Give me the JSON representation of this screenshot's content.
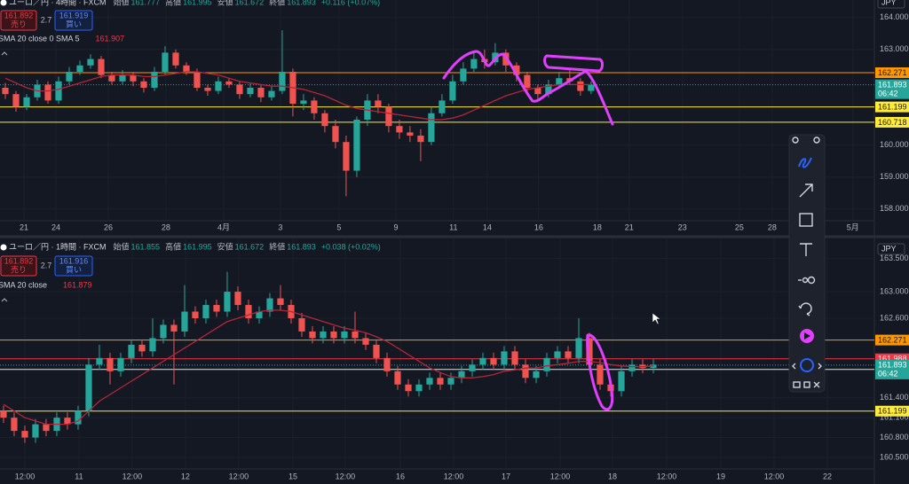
{
  "chart_data": [
    {
      "type": "candlestick",
      "title": "ユーロ／円 · 4時間 · FXCM",
      "ohlc": [
        {
          "label": "始値",
          "value": 161.777
        },
        {
          "label": "高値",
          "value": 161.995
        },
        {
          "label": "安値",
          "value": 161.672
        },
        {
          "label": "終値",
          "value": 161.893
        }
      ],
      "change": "+0.116 (+0.07%)",
      "sell": {
        "price": 161.892,
        "label": "売り"
      },
      "spread": 2.7,
      "buy": {
        "price": 161.919,
        "label": "買い"
      },
      "indicator": {
        "name": "SMA 20 close 0 SMA 5",
        "value": 161.907
      },
      "currency": "JPY",
      "up_color": "#26a69a",
      "down_color": "#ef5350",
      "sma_color": "#b3263a",
      "xlim": [
        -0.5,
        81.6
      ],
      "ylim": [
        157.66,
        164.55
      ],
      "xticks": [
        {
          "value": 1.75,
          "label": "21"
        },
        {
          "value": 4.75,
          "label": "24"
        },
        {
          "value": 9.67,
          "label": "26"
        },
        {
          "value": 15.08,
          "label": "28"
        },
        {
          "value": 20.5,
          "label": "4月"
        },
        {
          "value": 25.83,
          "label": "3"
        },
        {
          "value": 31.33,
          "label": "5"
        },
        {
          "value": 36.67,
          "label": "9"
        },
        {
          "value": 42.08,
          "label": "11"
        },
        {
          "value": 45.25,
          "label": "14"
        },
        {
          "value": 50.08,
          "label": "16"
        },
        {
          "value": 55.58,
          "label": "18"
        },
        {
          "value": 58.58,
          "label": "21"
        },
        {
          "value": 63.58,
          "label": "23"
        },
        {
          "value": 68.92,
          "label": "25"
        },
        {
          "value": 72,
          "label": "28"
        },
        {
          "value": 79.58,
          "label": "5月"
        }
      ],
      "yticks": [
        {
          "value": 164,
          "label": "164.000"
        },
        {
          "value": 163,
          "label": "163.000"
        },
        {
          "value": 160,
          "label": "160.000"
        },
        {
          "value": 159,
          "label": "159.000"
        },
        {
          "value": 158,
          "label": "158.000"
        }
      ],
      "candles": [
        [
          161.8,
          161.95,
          161.45,
          161.6
        ],
        [
          161.6,
          161.7,
          161.05,
          161.2
        ],
        [
          161.2,
          161.6,
          161.1,
          161.5
        ],
        [
          161.5,
          162.05,
          161.4,
          161.9
        ],
        [
          161.9,
          162.0,
          161.3,
          161.4
        ],
        [
          161.4,
          162.15,
          161.3,
          162.0
        ],
        [
          162.0,
          162.45,
          161.9,
          162.3
        ],
        [
          162.3,
          162.65,
          162.2,
          162.5
        ],
        [
          162.5,
          162.85,
          162.4,
          162.7
        ],
        [
          162.7,
          162.8,
          162.1,
          162.2
        ],
        [
          162.2,
          162.3,
          161.9,
          162.0
        ],
        [
          162.0,
          162.35,
          161.9,
          162.2
        ],
        [
          162.2,
          162.3,
          161.85,
          162.0
        ],
        [
          162.0,
          162.1,
          161.65,
          161.8
        ],
        [
          161.8,
          162.45,
          161.7,
          162.3
        ],
        [
          162.3,
          163.1,
          162.2,
          162.9
        ],
        [
          162.9,
          163.0,
          162.4,
          162.5
        ],
        [
          162.5,
          162.6,
          162.2,
          162.3
        ],
        [
          162.3,
          162.4,
          161.7,
          161.8
        ],
        [
          161.8,
          161.9,
          161.55,
          161.7
        ],
        [
          161.7,
          162.15,
          161.6,
          162.0
        ],
        [
          162.0,
          162.1,
          161.8,
          161.9
        ],
        [
          161.9,
          162.0,
          161.45,
          161.6
        ],
        [
          161.6,
          161.95,
          161.5,
          161.8
        ],
        [
          161.8,
          161.9,
          161.35,
          161.5
        ],
        [
          161.5,
          161.85,
          161.4,
          161.7
        ],
        [
          161.7,
          163.6,
          161.6,
          162.3
        ],
        [
          162.3,
          162.4,
          160.9,
          161.3
        ],
        [
          161.3,
          161.6,
          161.1,
          161.4
        ],
        [
          161.4,
          161.5,
          160.8,
          161.0
        ],
        [
          161.0,
          161.1,
          160.4,
          160.6
        ],
        [
          160.6,
          160.8,
          159.9,
          160.1
        ],
        [
          160.1,
          160.3,
          158.4,
          159.2
        ],
        [
          159.2,
          160.9,
          159.0,
          160.8
        ],
        [
          160.8,
          161.6,
          160.6,
          161.4
        ],
        [
          161.4,
          161.6,
          161.0,
          161.2
        ],
        [
          161.2,
          161.3,
          160.4,
          160.6
        ],
        [
          160.6,
          160.8,
          160.2,
          160.4
        ],
        [
          160.4,
          160.6,
          160.1,
          160.3
        ],
        [
          160.3,
          160.5,
          159.5,
          160.1
        ],
        [
          160.1,
          161.2,
          160.0,
          161.0
        ],
        [
          161.0,
          161.6,
          160.9,
          161.4
        ],
        [
          161.4,
          162.2,
          161.3,
          162.0
        ],
        [
          162.0,
          162.6,
          161.9,
          162.4
        ],
        [
          162.4,
          162.9,
          162.3,
          162.7
        ],
        [
          162.7,
          163.0,
          162.4,
          162.6
        ],
        [
          162.6,
          163.2,
          162.5,
          162.9
        ],
        [
          162.9,
          163.0,
          162.3,
          162.5
        ],
        [
          162.5,
          162.6,
          162.0,
          162.2
        ],
        [
          162.2,
          162.3,
          161.6,
          161.8
        ],
        [
          161.8,
          161.9,
          161.45,
          161.6
        ],
        [
          161.6,
          162.05,
          161.5,
          161.9
        ],
        [
          161.9,
          162.3,
          161.8,
          162.1
        ],
        [
          162.1,
          162.35,
          161.9,
          162.0
        ],
        [
          162.0,
          162.1,
          161.55,
          161.7
        ],
        [
          161.7,
          162.0,
          161.6,
          161.9
        ]
      ],
      "sma": [
        162.1,
        161.95,
        161.8,
        161.7,
        161.7,
        161.75,
        161.85,
        161.95,
        162.05,
        162.15,
        162.2,
        162.2,
        162.2,
        162.15,
        162.15,
        162.2,
        162.25,
        162.3,
        162.3,
        162.25,
        162.2,
        162.1,
        162.0,
        161.95,
        161.9,
        161.85,
        161.85,
        161.8,
        161.75,
        161.65,
        161.55,
        161.4,
        161.25,
        161.15,
        161.1,
        161.05,
        161.0,
        160.95,
        160.9,
        160.85,
        160.8,
        160.8,
        160.85,
        160.95,
        161.1,
        161.25,
        161.4,
        161.55,
        161.65,
        161.75,
        161.8,
        161.85,
        161.9,
        161.9,
        161.9,
        161.9
      ],
      "levels": [
        {
          "value": 162.271,
          "color": "#ff9800",
          "text_color": "#131722"
        },
        {
          "value": 161.199,
          "color": "#ffeb3b",
          "text_color": "#131722"
        },
        {
          "value": 160.718,
          "color": "#ffeb3b",
          "text_color": "#131722"
        }
      ],
      "last_price": {
        "value": 161.893,
        "countdown": "06:42",
        "color": "#26a69a"
      }
    },
    {
      "type": "candlestick",
      "title": "ユーロ／円 · 1時間 · FXCM",
      "ohlc": [
        {
          "label": "始値",
          "value": 161.855
        },
        {
          "label": "高値",
          "value": 161.995
        },
        {
          "label": "安値",
          "value": 161.672
        },
        {
          "label": "終値",
          "value": 161.893
        }
      ],
      "change": "+0.038 (+0.02%)",
      "sell": {
        "price": 161.892,
        "label": "売り"
      },
      "spread": 2.7,
      "buy": {
        "price": 161.916,
        "label": "買い"
      },
      "indicator": {
        "name": "SMA 20 close",
        "value": 161.879
      },
      "currency": "JPY",
      "up_color": "#26a69a",
      "down_color": "#ef5350",
      "sma_color": "#b3263a",
      "xlim": [
        -0.33,
        81.75
      ],
      "ylim": [
        160.34,
        163.79
      ],
      "xticks": [
        {
          "value": 2,
          "label": "12:00"
        },
        {
          "value": 7.08,
          "label": "11"
        },
        {
          "value": 12.08,
          "label": "12:00"
        },
        {
          "value": 17.08,
          "label": "12"
        },
        {
          "value": 22.08,
          "label": "12:00"
        },
        {
          "value": 27.17,
          "label": "15"
        },
        {
          "value": 32.08,
          "label": "12:00"
        },
        {
          "value": 37.25,
          "label": "16"
        },
        {
          "value": 42.25,
          "label": "12:00"
        },
        {
          "value": 47.17,
          "label": "17"
        },
        {
          "value": 52.25,
          "label": "12:00"
        },
        {
          "value": 57.17,
          "label": "18"
        },
        {
          "value": 62.25,
          "label": "12:00"
        },
        {
          "value": 67.33,
          "label": "19"
        },
        {
          "value": 72.33,
          "label": "12:00"
        },
        {
          "value": 77.33,
          "label": "22"
        }
      ],
      "yticks": [
        {
          "value": 163.5,
          "label": "163.500"
        },
        {
          "value": 163,
          "label": "163.000"
        },
        {
          "value": 162.6,
          "label": "162.600"
        },
        {
          "value": 161.4,
          "label": "161.400"
        },
        {
          "value": 161.1,
          "label": "161.100"
        },
        {
          "value": 160.8,
          "label": "160.800"
        },
        {
          "value": 160.5,
          "label": "160.500"
        }
      ],
      "candles": [
        [
          161.2,
          161.28,
          161.02,
          161.1
        ],
        [
          161.1,
          161.18,
          160.82,
          160.9
        ],
        [
          160.9,
          160.98,
          160.72,
          160.8
        ],
        [
          160.8,
          161.08,
          160.72,
          161.0
        ],
        [
          161.0,
          161.08,
          160.82,
          160.9
        ],
        [
          160.9,
          161.18,
          160.82,
          161.1
        ],
        [
          161.1,
          161.18,
          160.92,
          161.0
        ],
        [
          161.0,
          161.28,
          160.92,
          161.2
        ],
        [
          161.2,
          162.0,
          161.12,
          161.9
        ],
        [
          161.9,
          162.2,
          161.82,
          162.0
        ],
        [
          162.0,
          162.08,
          161.6,
          161.8
        ],
        [
          161.8,
          162.08,
          161.72,
          162.0
        ],
        [
          162.0,
          162.28,
          161.92,
          162.2
        ],
        [
          162.2,
          162.28,
          162.02,
          162.1
        ],
        [
          162.1,
          162.6,
          162.02,
          162.3
        ],
        [
          162.3,
          162.58,
          162.22,
          162.5
        ],
        [
          162.5,
          162.58,
          161.6,
          162.4
        ],
        [
          162.4,
          163.1,
          162.32,
          162.7
        ],
        [
          162.7,
          162.78,
          162.52,
          162.6
        ],
        [
          162.6,
          162.88,
          162.52,
          162.8
        ],
        [
          162.8,
          162.88,
          162.62,
          162.7
        ],
        [
          162.7,
          163.3,
          162.62,
          163.0
        ],
        [
          163.0,
          163.08,
          162.72,
          162.8
        ],
        [
          162.8,
          162.88,
          162.52,
          162.6
        ],
        [
          162.6,
          162.78,
          162.52,
          162.7
        ],
        [
          162.7,
          162.98,
          162.62,
          162.9
        ],
        [
          162.9,
          163.1,
          162.72,
          162.8
        ],
        [
          162.8,
          162.88,
          162.52,
          162.6
        ],
        [
          162.6,
          162.68,
          162.32,
          162.4
        ],
        [
          162.4,
          162.48,
          162.22,
          162.3
        ],
        [
          162.3,
          162.48,
          162.22,
          162.4
        ],
        [
          162.4,
          162.48,
          162.22,
          162.3
        ],
        [
          162.3,
          162.48,
          162.22,
          162.4
        ],
        [
          162.4,
          162.7,
          162.22,
          162.3
        ],
        [
          162.3,
          162.38,
          162.12,
          162.2
        ],
        [
          162.2,
          162.28,
          161.92,
          162.0
        ],
        [
          162.0,
          162.08,
          161.72,
          161.8
        ],
        [
          161.8,
          161.88,
          161.52,
          161.6
        ],
        [
          161.6,
          161.68,
          161.42,
          161.5
        ],
        [
          161.5,
          161.68,
          161.42,
          161.6
        ],
        [
          161.6,
          161.78,
          161.52,
          161.7
        ],
        [
          161.7,
          161.78,
          161.52,
          161.6
        ],
        [
          161.6,
          161.78,
          161.52,
          161.7
        ],
        [
          161.7,
          161.88,
          161.62,
          161.8
        ],
        [
          161.8,
          161.98,
          161.72,
          161.9
        ],
        [
          161.9,
          162.08,
          161.82,
          162.0
        ],
        [
          162.0,
          162.08,
          161.82,
          161.9
        ],
        [
          161.9,
          162.18,
          161.82,
          162.1
        ],
        [
          162.1,
          162.18,
          161.82,
          161.9
        ],
        [
          161.9,
          161.98,
          161.62,
          161.7
        ],
        [
          161.7,
          161.88,
          161.62,
          161.8
        ],
        [
          161.8,
          162.08,
          161.72,
          162.0
        ],
        [
          162.0,
          162.18,
          161.92,
          162.1
        ],
        [
          162.1,
          162.18,
          161.92,
          162.0
        ],
        [
          162.0,
          162.6,
          161.92,
          162.3
        ],
        [
          162.3,
          162.38,
          161.82,
          161.9
        ],
        [
          161.9,
          161.98,
          161.52,
          161.6
        ],
        [
          161.6,
          161.68,
          161.42,
          161.5
        ],
        [
          161.5,
          161.88,
          161.42,
          161.8
        ],
        [
          161.8,
          161.98,
          161.72,
          161.9
        ],
        [
          161.9,
          161.98,
          161.77,
          161.85
        ],
        [
          161.85,
          161.98,
          161.77,
          161.9
        ]
      ],
      "sma": [
        161.3,
        161.2,
        161.1,
        161.05,
        161.0,
        161.0,
        161.0,
        161.05,
        161.2,
        161.35,
        161.45,
        161.55,
        161.65,
        161.75,
        161.85,
        161.95,
        162.05,
        162.15,
        162.25,
        162.35,
        162.45,
        162.55,
        162.6,
        162.65,
        162.7,
        162.72,
        162.72,
        162.7,
        162.65,
        162.6,
        162.55,
        162.5,
        162.45,
        162.42,
        162.38,
        162.32,
        162.25,
        162.15,
        162.05,
        161.95,
        161.85,
        161.78,
        161.72,
        161.7,
        161.7,
        161.72,
        161.75,
        161.8,
        161.82,
        161.85,
        161.85,
        161.88,
        161.9,
        161.92,
        161.95,
        161.95,
        161.93,
        161.9,
        161.88,
        161.87,
        161.87,
        161.88
      ],
      "levels": [
        {
          "value": 162.271,
          "color": "#ff9800",
          "text_color": "#131722"
        },
        {
          "value": 161.988,
          "color": "#f23645",
          "text_color": "#ffffff"
        },
        {
          "value": 161.828,
          "color": "#e0e3eb",
          "text_color": "#131722"
        },
        {
          "value": 161.199,
          "color": "#ffeb3b",
          "text_color": "#131722"
        }
      ],
      "last_price": {
        "value": 161.893,
        "countdown": "06:42",
        "color": "#26a69a"
      }
    }
  ]
}
